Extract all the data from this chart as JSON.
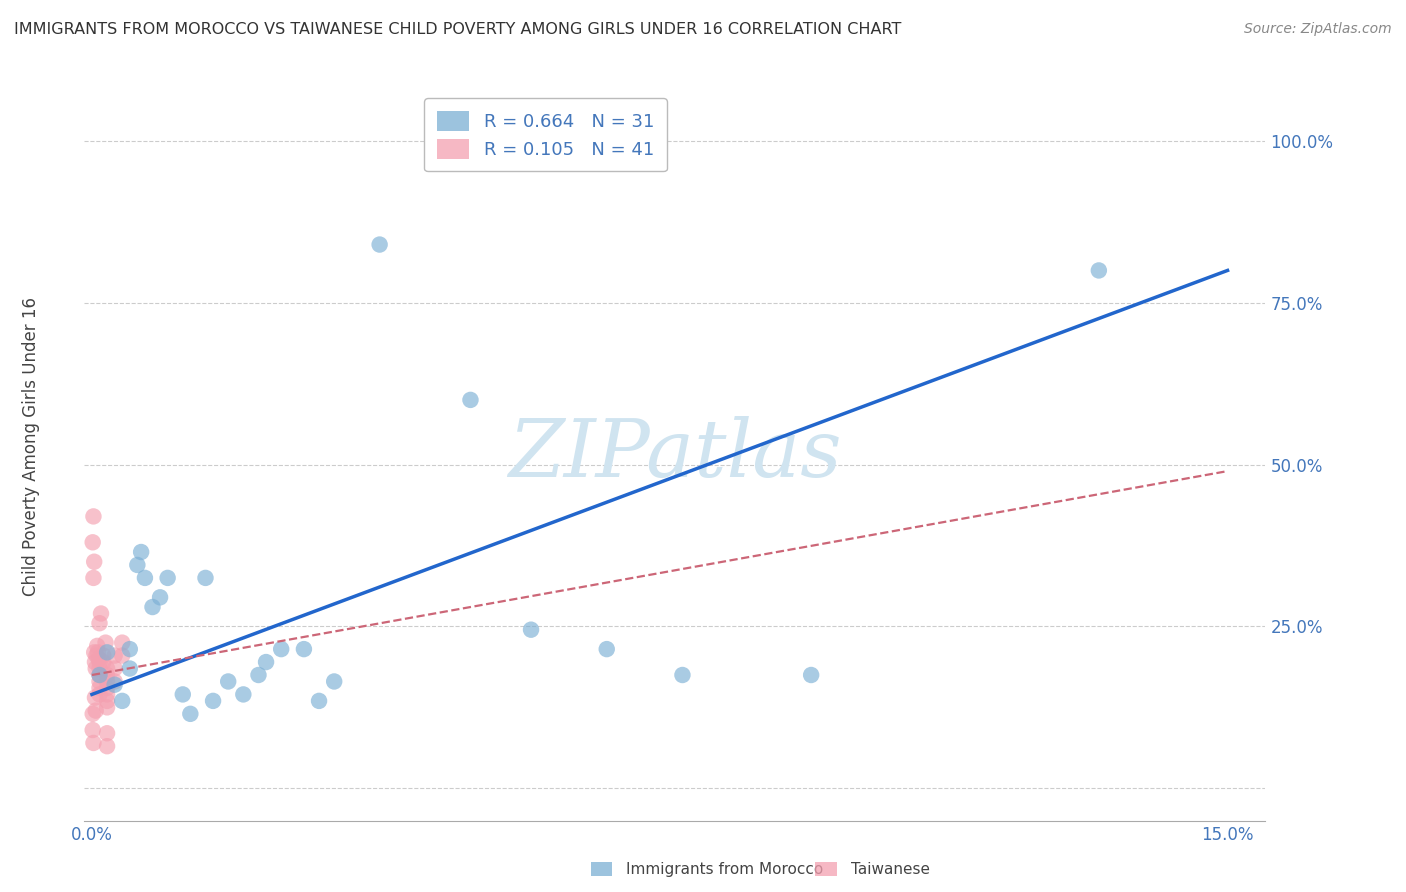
{
  "title": "IMMIGRANTS FROM MOROCCO VS TAIWANESE CHILD POVERTY AMONG GIRLS UNDER 16 CORRELATION CHART",
  "source": "Source: ZipAtlas.com",
  "ylabel": "Child Poverty Among Girls Under 16",
  "yticks": [
    0.0,
    0.25,
    0.5,
    0.75,
    1.0
  ],
  "ytick_labels": [
    "",
    "25.0%",
    "50.0%",
    "75.0%",
    "100.0%"
  ],
  "xtick_labels": [
    "0.0%",
    "",
    "",
    "",
    "",
    "15.0%"
  ],
  "legend_blue_r": "R = 0.664",
  "legend_blue_n": "N = 31",
  "legend_pink_r": "R = 0.105",
  "legend_pink_n": "N = 41",
  "blue_color": "#7BAFD4",
  "pink_color": "#F4A0B0",
  "trend_blue_color": "#2266CC",
  "trend_pink_color": "#CC6677",
  "watermark_color": "#D0E4F0",
  "title_color": "#333333",
  "axis_label_color": "#4477BB",
  "grid_color": "#CCCCCC",
  "blue_scatter": [
    [
      0.001,
      0.175
    ],
    [
      0.002,
      0.21
    ],
    [
      0.003,
      0.16
    ],
    [
      0.004,
      0.135
    ],
    [
      0.005,
      0.215
    ],
    [
      0.005,
      0.185
    ],
    [
      0.006,
      0.345
    ],
    [
      0.0065,
      0.365
    ],
    [
      0.007,
      0.325
    ],
    [
      0.008,
      0.28
    ],
    [
      0.009,
      0.295
    ],
    [
      0.01,
      0.325
    ],
    [
      0.012,
      0.145
    ],
    [
      0.013,
      0.115
    ],
    [
      0.015,
      0.325
    ],
    [
      0.016,
      0.135
    ],
    [
      0.018,
      0.165
    ],
    [
      0.02,
      0.145
    ],
    [
      0.022,
      0.175
    ],
    [
      0.023,
      0.195
    ],
    [
      0.025,
      0.215
    ],
    [
      0.028,
      0.215
    ],
    [
      0.03,
      0.135
    ],
    [
      0.032,
      0.165
    ],
    [
      0.038,
      0.84
    ],
    [
      0.05,
      0.6
    ],
    [
      0.058,
      0.245
    ],
    [
      0.068,
      0.215
    ],
    [
      0.078,
      0.175
    ],
    [
      0.095,
      0.175
    ],
    [
      0.133,
      0.8
    ]
  ],
  "pink_scatter": [
    [
      0.0001,
      0.38
    ],
    [
      0.0002,
      0.325
    ],
    [
      0.0003,
      0.21
    ],
    [
      0.0004,
      0.195
    ],
    [
      0.0005,
      0.185
    ],
    [
      0.0006,
      0.205
    ],
    [
      0.0007,
      0.22
    ],
    [
      0.0008,
      0.21
    ],
    [
      0.0009,
      0.2
    ],
    [
      0.001,
      0.195
    ],
    [
      0.001,
      0.185
    ],
    [
      0.001,
      0.175
    ],
    [
      0.001,
      0.165
    ],
    [
      0.001,
      0.155
    ],
    [
      0.001,
      0.145
    ],
    [
      0.0015,
      0.205
    ],
    [
      0.0015,
      0.195
    ],
    [
      0.002,
      0.185
    ],
    [
      0.002,
      0.175
    ],
    [
      0.002,
      0.165
    ],
    [
      0.002,
      0.155
    ],
    [
      0.002,
      0.145
    ],
    [
      0.002,
      0.135
    ],
    [
      0.002,
      0.125
    ],
    [
      0.002,
      0.085
    ],
    [
      0.002,
      0.065
    ],
    [
      0.003,
      0.205
    ],
    [
      0.003,
      0.185
    ],
    [
      0.003,
      0.165
    ],
    [
      0.004,
      0.225
    ],
    [
      0.004,
      0.205
    ],
    [
      0.0002,
      0.42
    ],
    [
      0.0003,
      0.35
    ],
    [
      0.0004,
      0.14
    ],
    [
      0.0005,
      0.12
    ],
    [
      0.0012,
      0.27
    ],
    [
      0.001,
      0.255
    ],
    [
      0.0018,
      0.225
    ],
    [
      0.0001,
      0.115
    ],
    [
      0.0001,
      0.09
    ],
    [
      0.0002,
      0.07
    ]
  ],
  "blue_trend_x": [
    0.0,
    0.15
  ],
  "blue_trend_y": [
    0.145,
    0.8
  ],
  "pink_trend_x": [
    0.0,
    0.15
  ],
  "pink_trend_y": [
    0.175,
    0.49
  ],
  "xlim": [
    -0.001,
    0.155
  ],
  "ylim": [
    -0.05,
    1.08
  ]
}
